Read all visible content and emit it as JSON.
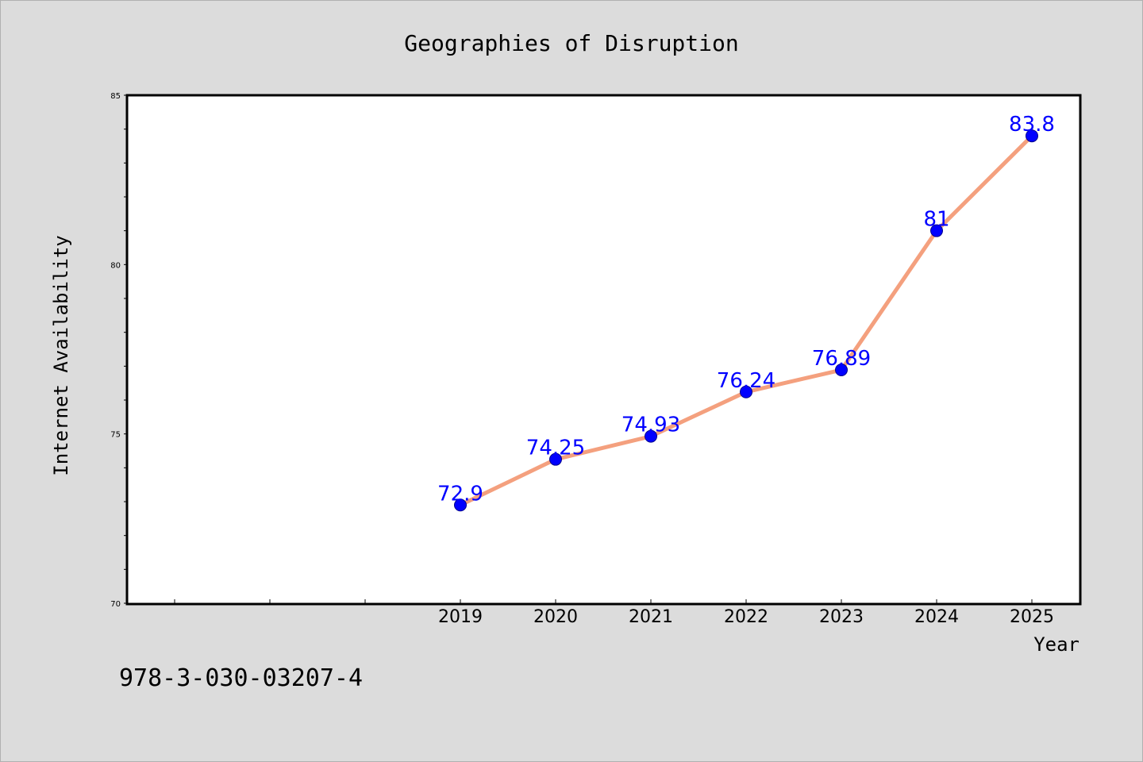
{
  "chart_data": {
    "type": "line",
    "title": "Geographies of Disruption",
    "xlabel": "Year",
    "ylabel": "Internet Availability",
    "categories": [
      "2019",
      "2020",
      "2021",
      "2022",
      "2023",
      "2024",
      "2025"
    ],
    "values": [
      72.9,
      74.25,
      74.93,
      76.24,
      76.89,
      81,
      83.8
    ],
    "data_labels": [
      "72.9",
      "74.25",
      "74.93",
      "76.24",
      "76.89",
      "81",
      "83.8"
    ],
    "ylim": [
      70,
      85
    ],
    "yticks": [
      "70",
      "75",
      "80",
      "85"
    ],
    "grid": false,
    "line_color": "#f4a07e",
    "marker_color": "#0000ff",
    "label_color": "#0000ff"
  },
  "footer": {
    "isbn": "978-3-030-03207-4"
  }
}
